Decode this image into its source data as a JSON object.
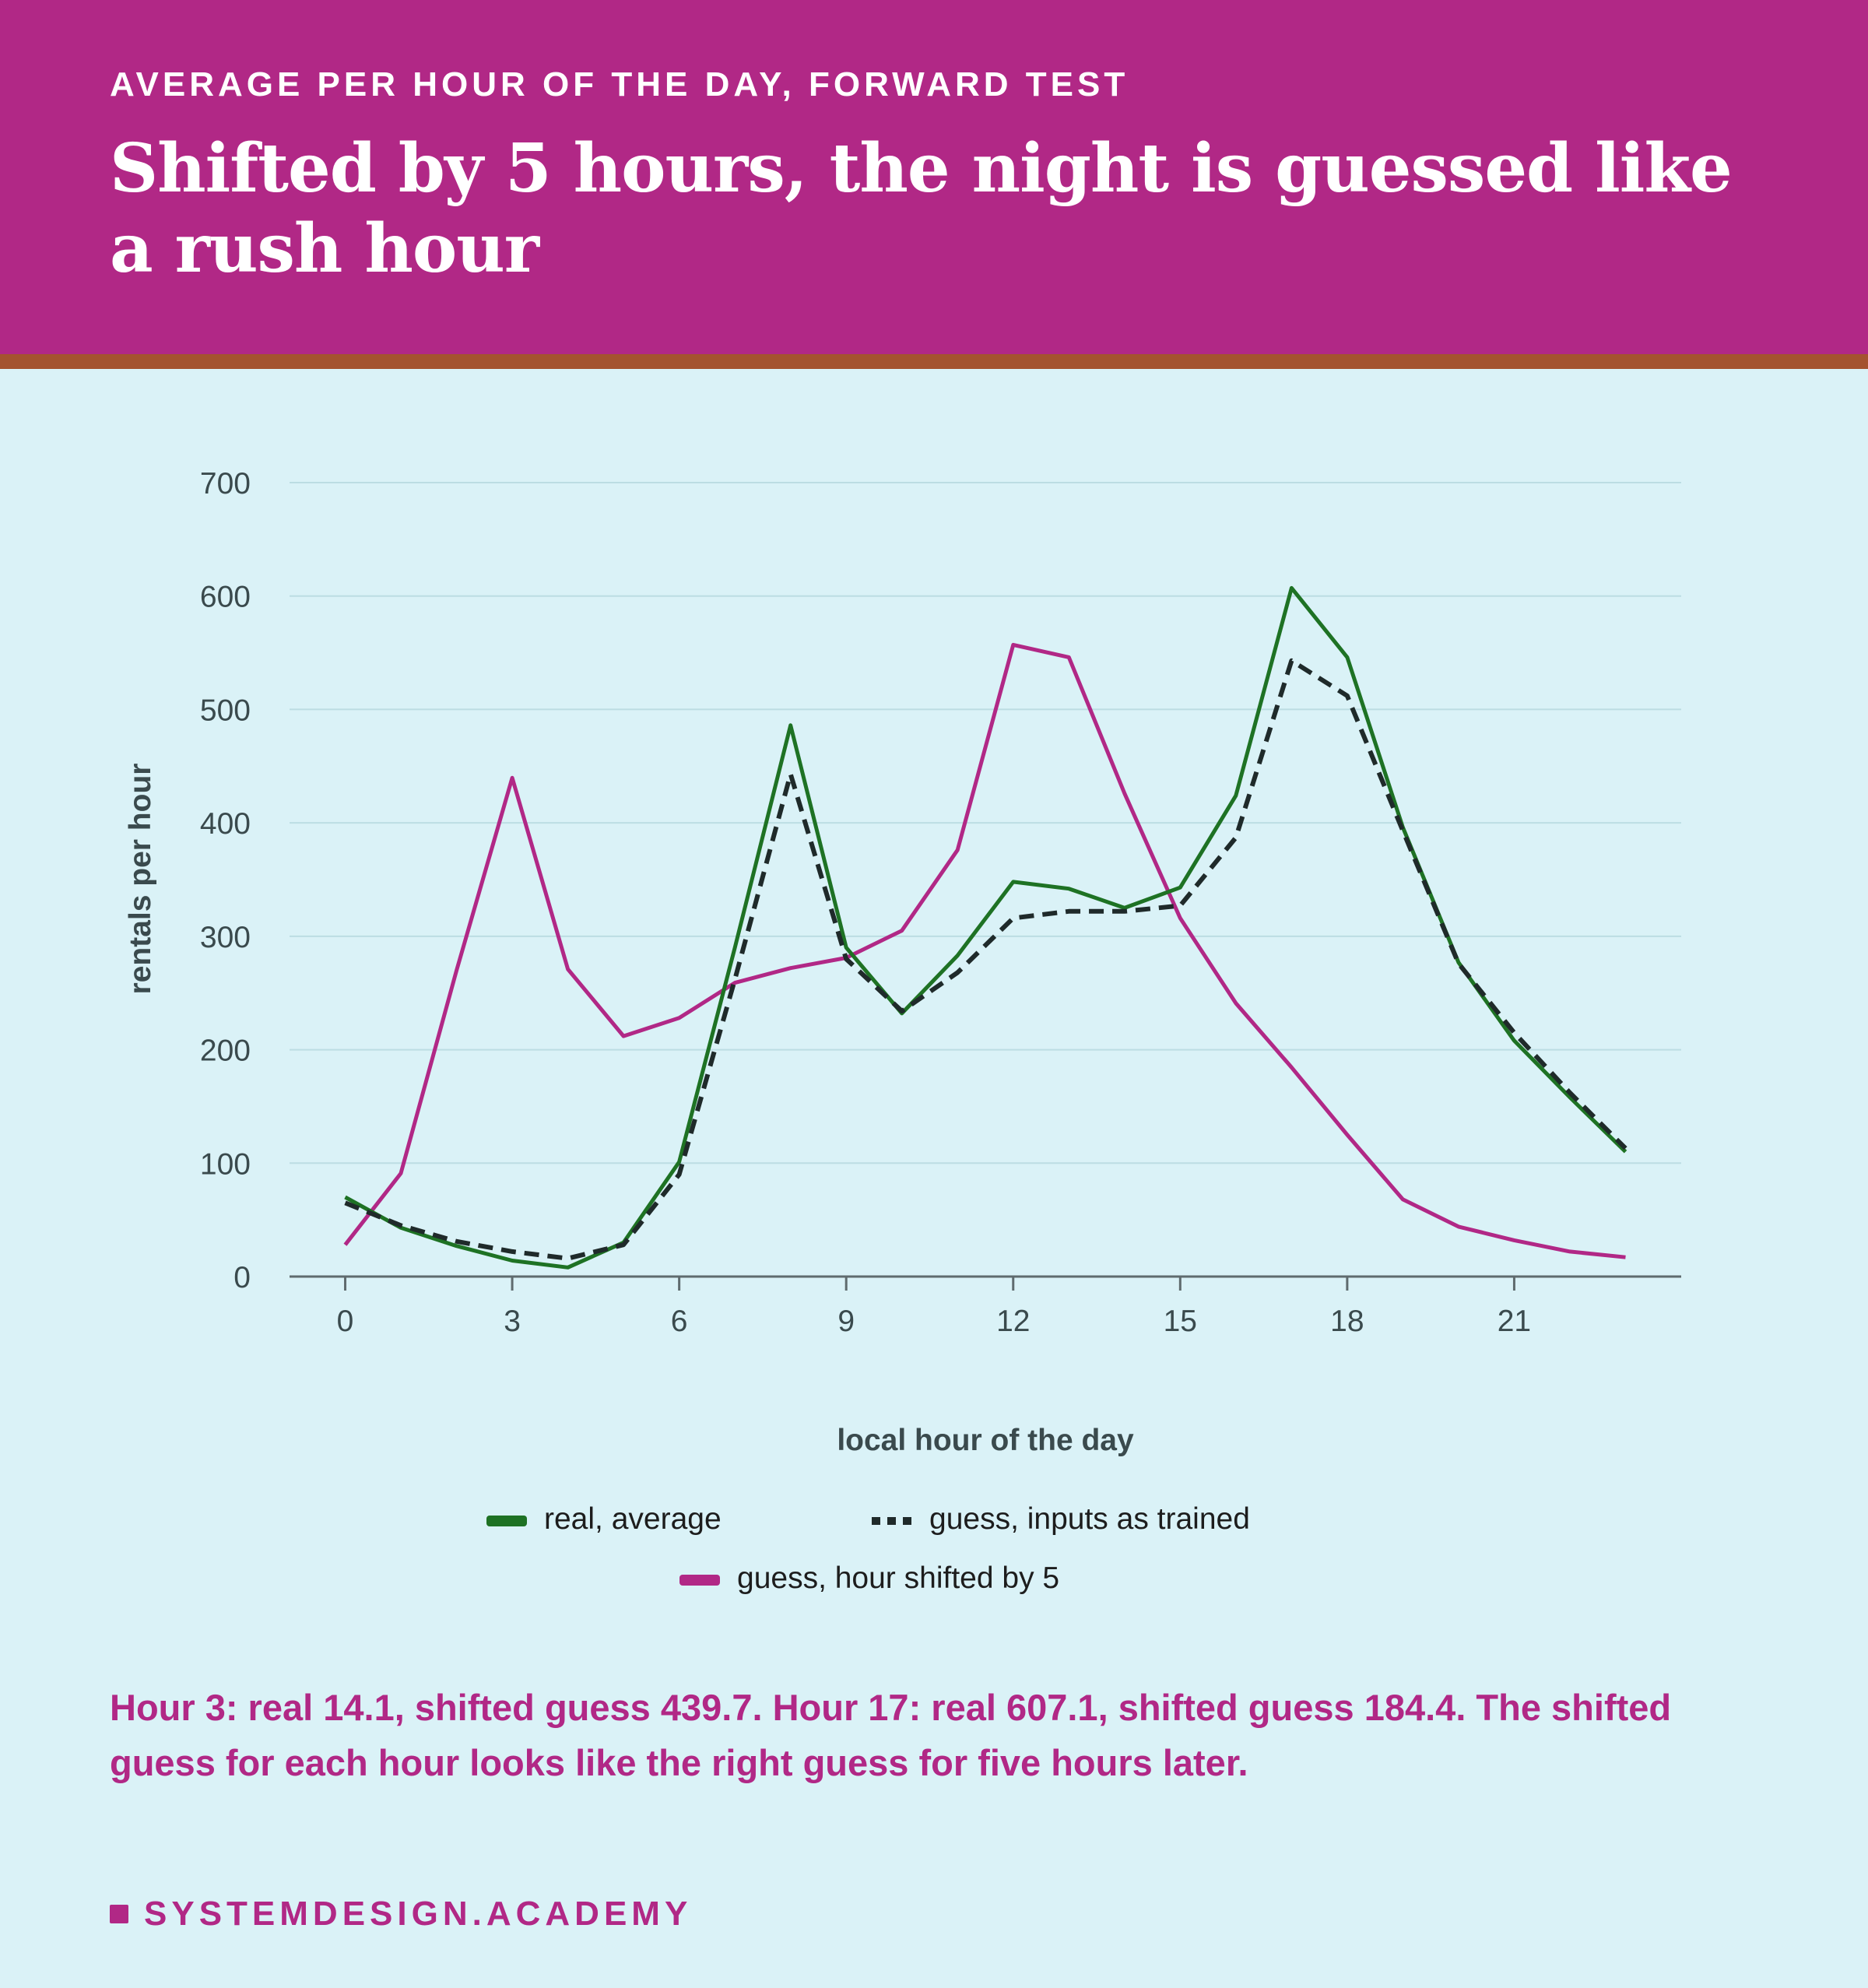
{
  "header": {
    "kicker": "AVERAGE PER HOUR OF THE DAY, FORWARD TEST",
    "title": "Shifted by 5 hours, the night is guessed like a rush hour"
  },
  "note": "Hour 3: real 14.1, shifted guess 439.7. Hour 17: real 607.1, shifted guess 184.4. The shifted guess for each hour looks like the right guess for five hours later.",
  "brand": {
    "label": "SYSTEMDESIGN.ACADEMY"
  },
  "colors": {
    "header_bg": "#b12886",
    "header_rule": "#a4532f",
    "background": "#daf2f7",
    "real": "#1e7224",
    "guess_trained": "#1f2a2a",
    "guess_shifted": "#b12886",
    "note": "#b12886"
  },
  "chart_data": {
    "type": "line",
    "title": "",
    "xlabel": "local hour of the day",
    "ylabel": "rentals per hour",
    "x": [
      0,
      1,
      2,
      3,
      4,
      5,
      6,
      7,
      8,
      9,
      10,
      11,
      12,
      13,
      14,
      15,
      16,
      17,
      18,
      19,
      20,
      21,
      22,
      23
    ],
    "xlim": [
      -1,
      24
    ],
    "ylim": [
      0,
      700
    ],
    "xticks": [
      0,
      3,
      6,
      9,
      12,
      15,
      18,
      21
    ],
    "yticks": [
      0,
      100,
      200,
      300,
      400,
      500,
      600,
      700
    ],
    "grid": true,
    "legend_placement": "bottom-center",
    "series": [
      {
        "name": "real, average",
        "style": "solid",
        "color": "#1e7224",
        "values": [
          70,
          43,
          27,
          14.1,
          8,
          30,
          101,
          290,
          486,
          290,
          232,
          283,
          348,
          342,
          325,
          343,
          424,
          607.1,
          546,
          396,
          277,
          208,
          158,
          110
        ]
      },
      {
        "name": "guess, inputs as trained",
        "style": "dashed",
        "color": "#1f2a2a",
        "values": [
          65,
          45,
          31,
          22,
          16,
          28,
          90,
          262,
          443,
          280,
          234,
          268,
          316,
          322,
          322,
          327,
          387,
          543,
          512,
          393,
          276,
          215,
          162,
          113
        ]
      },
      {
        "name": "guess, hour shifted by 5",
        "style": "solid",
        "color": "#b12886",
        "values": [
          28,
          91,
          270,
          439.7,
          271,
          212,
          228,
          259,
          272,
          281,
          305,
          376,
          557,
          546,
          426,
          316,
          241,
          184.4,
          125,
          68,
          44,
          32,
          22,
          17
        ]
      }
    ]
  }
}
